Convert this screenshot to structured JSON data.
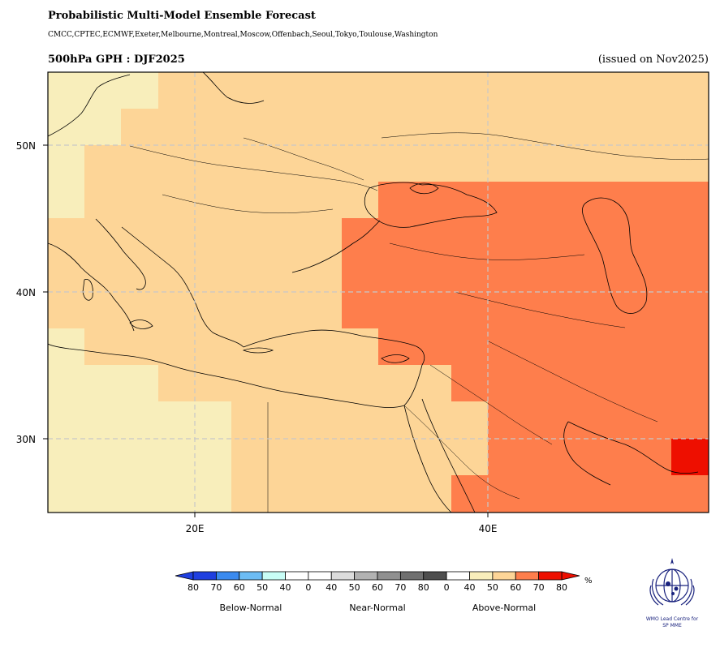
{
  "header": {
    "title": "Probabilistic Multi-Model Ensemble Forecast",
    "models": "CMCC,CPTEC,ECMWF,Exeter,Melbourne,Montreal,Moscow,Offenbach,Seoul,Tokyo,Toulouse,Washington",
    "variable_season": "500hPa GPH : DJF2025",
    "issued": "(issued on Nov2025)"
  },
  "map": {
    "lat_labels": [
      "50N",
      "40N",
      "30N"
    ],
    "lon_labels": [
      "20E",
      "40E"
    ],
    "colors": {
      "above_40": "#f8eebb",
      "above_50": "#fdd597",
      "above_60": "#fe7e4c",
      "above_70": "#ee0f00"
    }
  },
  "legend": {
    "ticks": [
      "80",
      "70",
      "60",
      "50",
      "40",
      "0",
      "40",
      "50",
      "60",
      "70",
      "80",
      "0",
      "40",
      "50",
      "60",
      "70",
      "80"
    ],
    "unit": "%",
    "groups": [
      "Below-Normal",
      "Near-Normal",
      "Above-Normal"
    ],
    "colors": [
      "#1f3fe0",
      "#3a8aef",
      "#6cbcf4",
      "#c8fdf6",
      "#ffffff",
      "#ffffff",
      "#dcdcdc",
      "#b2b2b2",
      "#909090",
      "#707070",
      "#4e4e4e",
      "#ffffff",
      "#f8eebb",
      "#fdd597",
      "#fe7e4c",
      "#ee0f00"
    ]
  },
  "logo": {
    "text_line1": "WMO Lead Centre for",
    "text_line2": "SP MME"
  }
}
